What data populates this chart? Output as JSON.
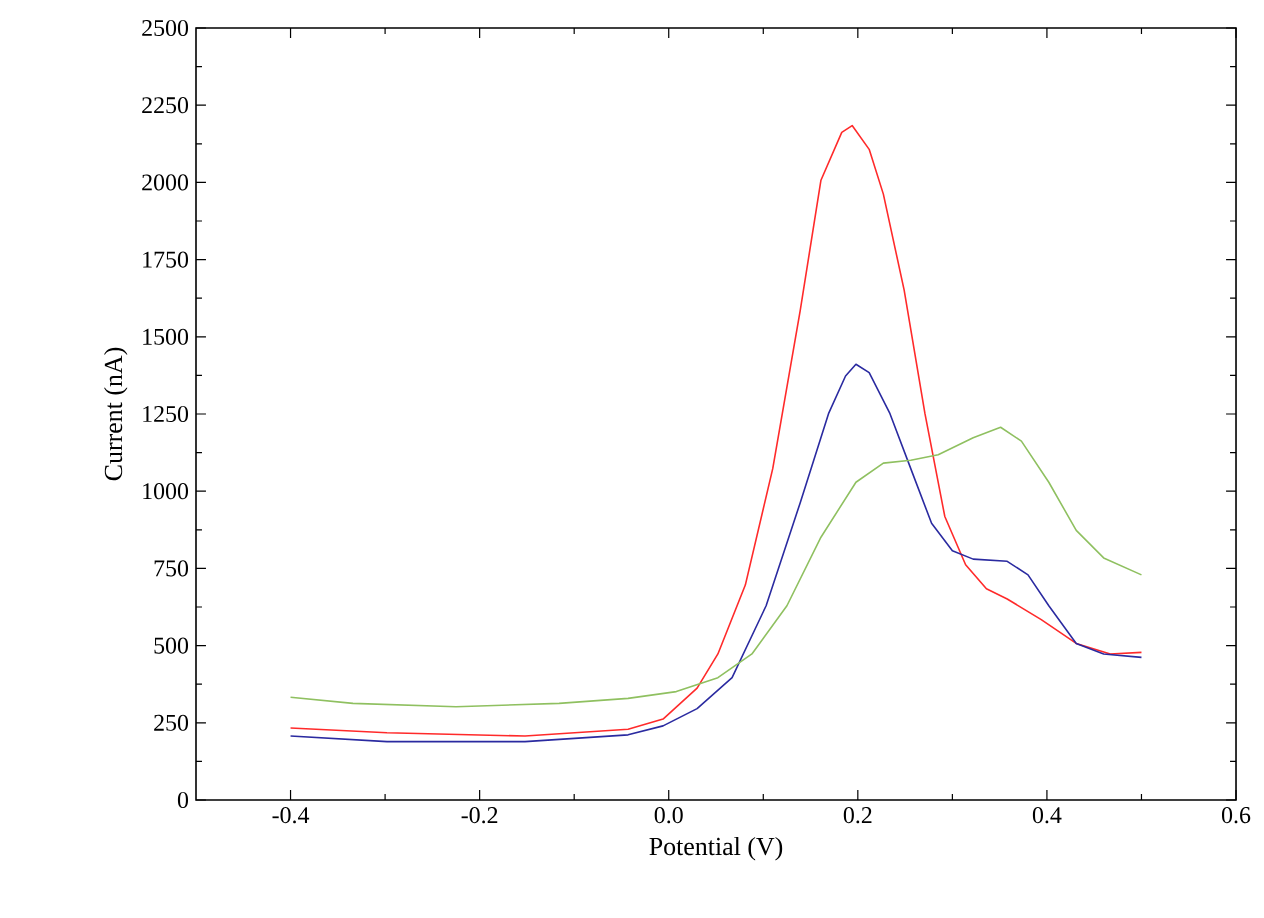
{
  "chart_data": {
    "type": "line",
    "xlabel": "Potential (V)",
    "ylabel": "Current (nA)",
    "xlim": [
      -0.5,
      0.6
    ],
    "ylim": [
      0,
      2500
    ],
    "xticks": [
      -0.4,
      -0.2,
      {
        "value": 0,
        "label": "0.0"
      },
      0.2,
      0.4,
      0.6
    ],
    "yticks": [
      0,
      250,
      500,
      750,
      1000,
      1250,
      1500,
      1750,
      2000,
      2250,
      2500
    ],
    "grid": false,
    "marker": "none",
    "line_style": "solid",
    "series": [
      {
        "color": "#ff2a2a",
        "x": [
          -0.4,
          -0.298,
          -0.152,
          -0.043,
          -0.006,
          0.03,
          0.052,
          0.081,
          0.11,
          0.139,
          0.161,
          0.183,
          0.194,
          0.212,
          0.227,
          0.249,
          0.271,
          0.292,
          0.314,
          0.336,
          0.358,
          0.394,
          0.431,
          0.467,
          0.5
        ],
        "values": [
          233,
          218,
          207,
          229,
          262,
          362,
          473,
          696,
          1073,
          1584,
          2007,
          2162,
          2184,
          2107,
          1962,
          1651,
          1251,
          918,
          762,
          684,
          651,
          584,
          507,
          473,
          478
        ]
      },
      {
        "color": "#2a2aa0",
        "x": [
          -0.4,
          -0.298,
          -0.152,
          -0.043,
          -0.006,
          0.03,
          0.067,
          0.103,
          0.139,
          0.169,
          0.187,
          0.198,
          0.212,
          0.234,
          0.256,
          0.278,
          0.3,
          0.322,
          0.358,
          0.38,
          0.402,
          0.431,
          0.46,
          0.5
        ],
        "values": [
          207,
          189,
          189,
          211,
          240,
          296,
          396,
          629,
          962,
          1251,
          1373,
          1411,
          1384,
          1251,
          1073,
          896,
          807,
          780,
          773,
          729,
          629,
          507,
          473,
          462
        ]
      },
      {
        "color": "#8fc060",
        "x": [
          -0.4,
          -0.334,
          -0.225,
          -0.116,
          -0.043,
          0.008,
          0.052,
          0.088,
          0.125,
          0.161,
          0.198,
          0.227,
          0.256,
          0.285,
          0.322,
          0.351,
          0.373,
          0.402,
          0.431,
          0.46,
          0.5
        ],
        "values": [
          333,
          313,
          302,
          313,
          329,
          351,
          396,
          473,
          629,
          851,
          1029,
          1091,
          1100,
          1118,
          1173,
          1207,
          1162,
          1029,
          873,
          784,
          729
        ]
      }
    ]
  }
}
